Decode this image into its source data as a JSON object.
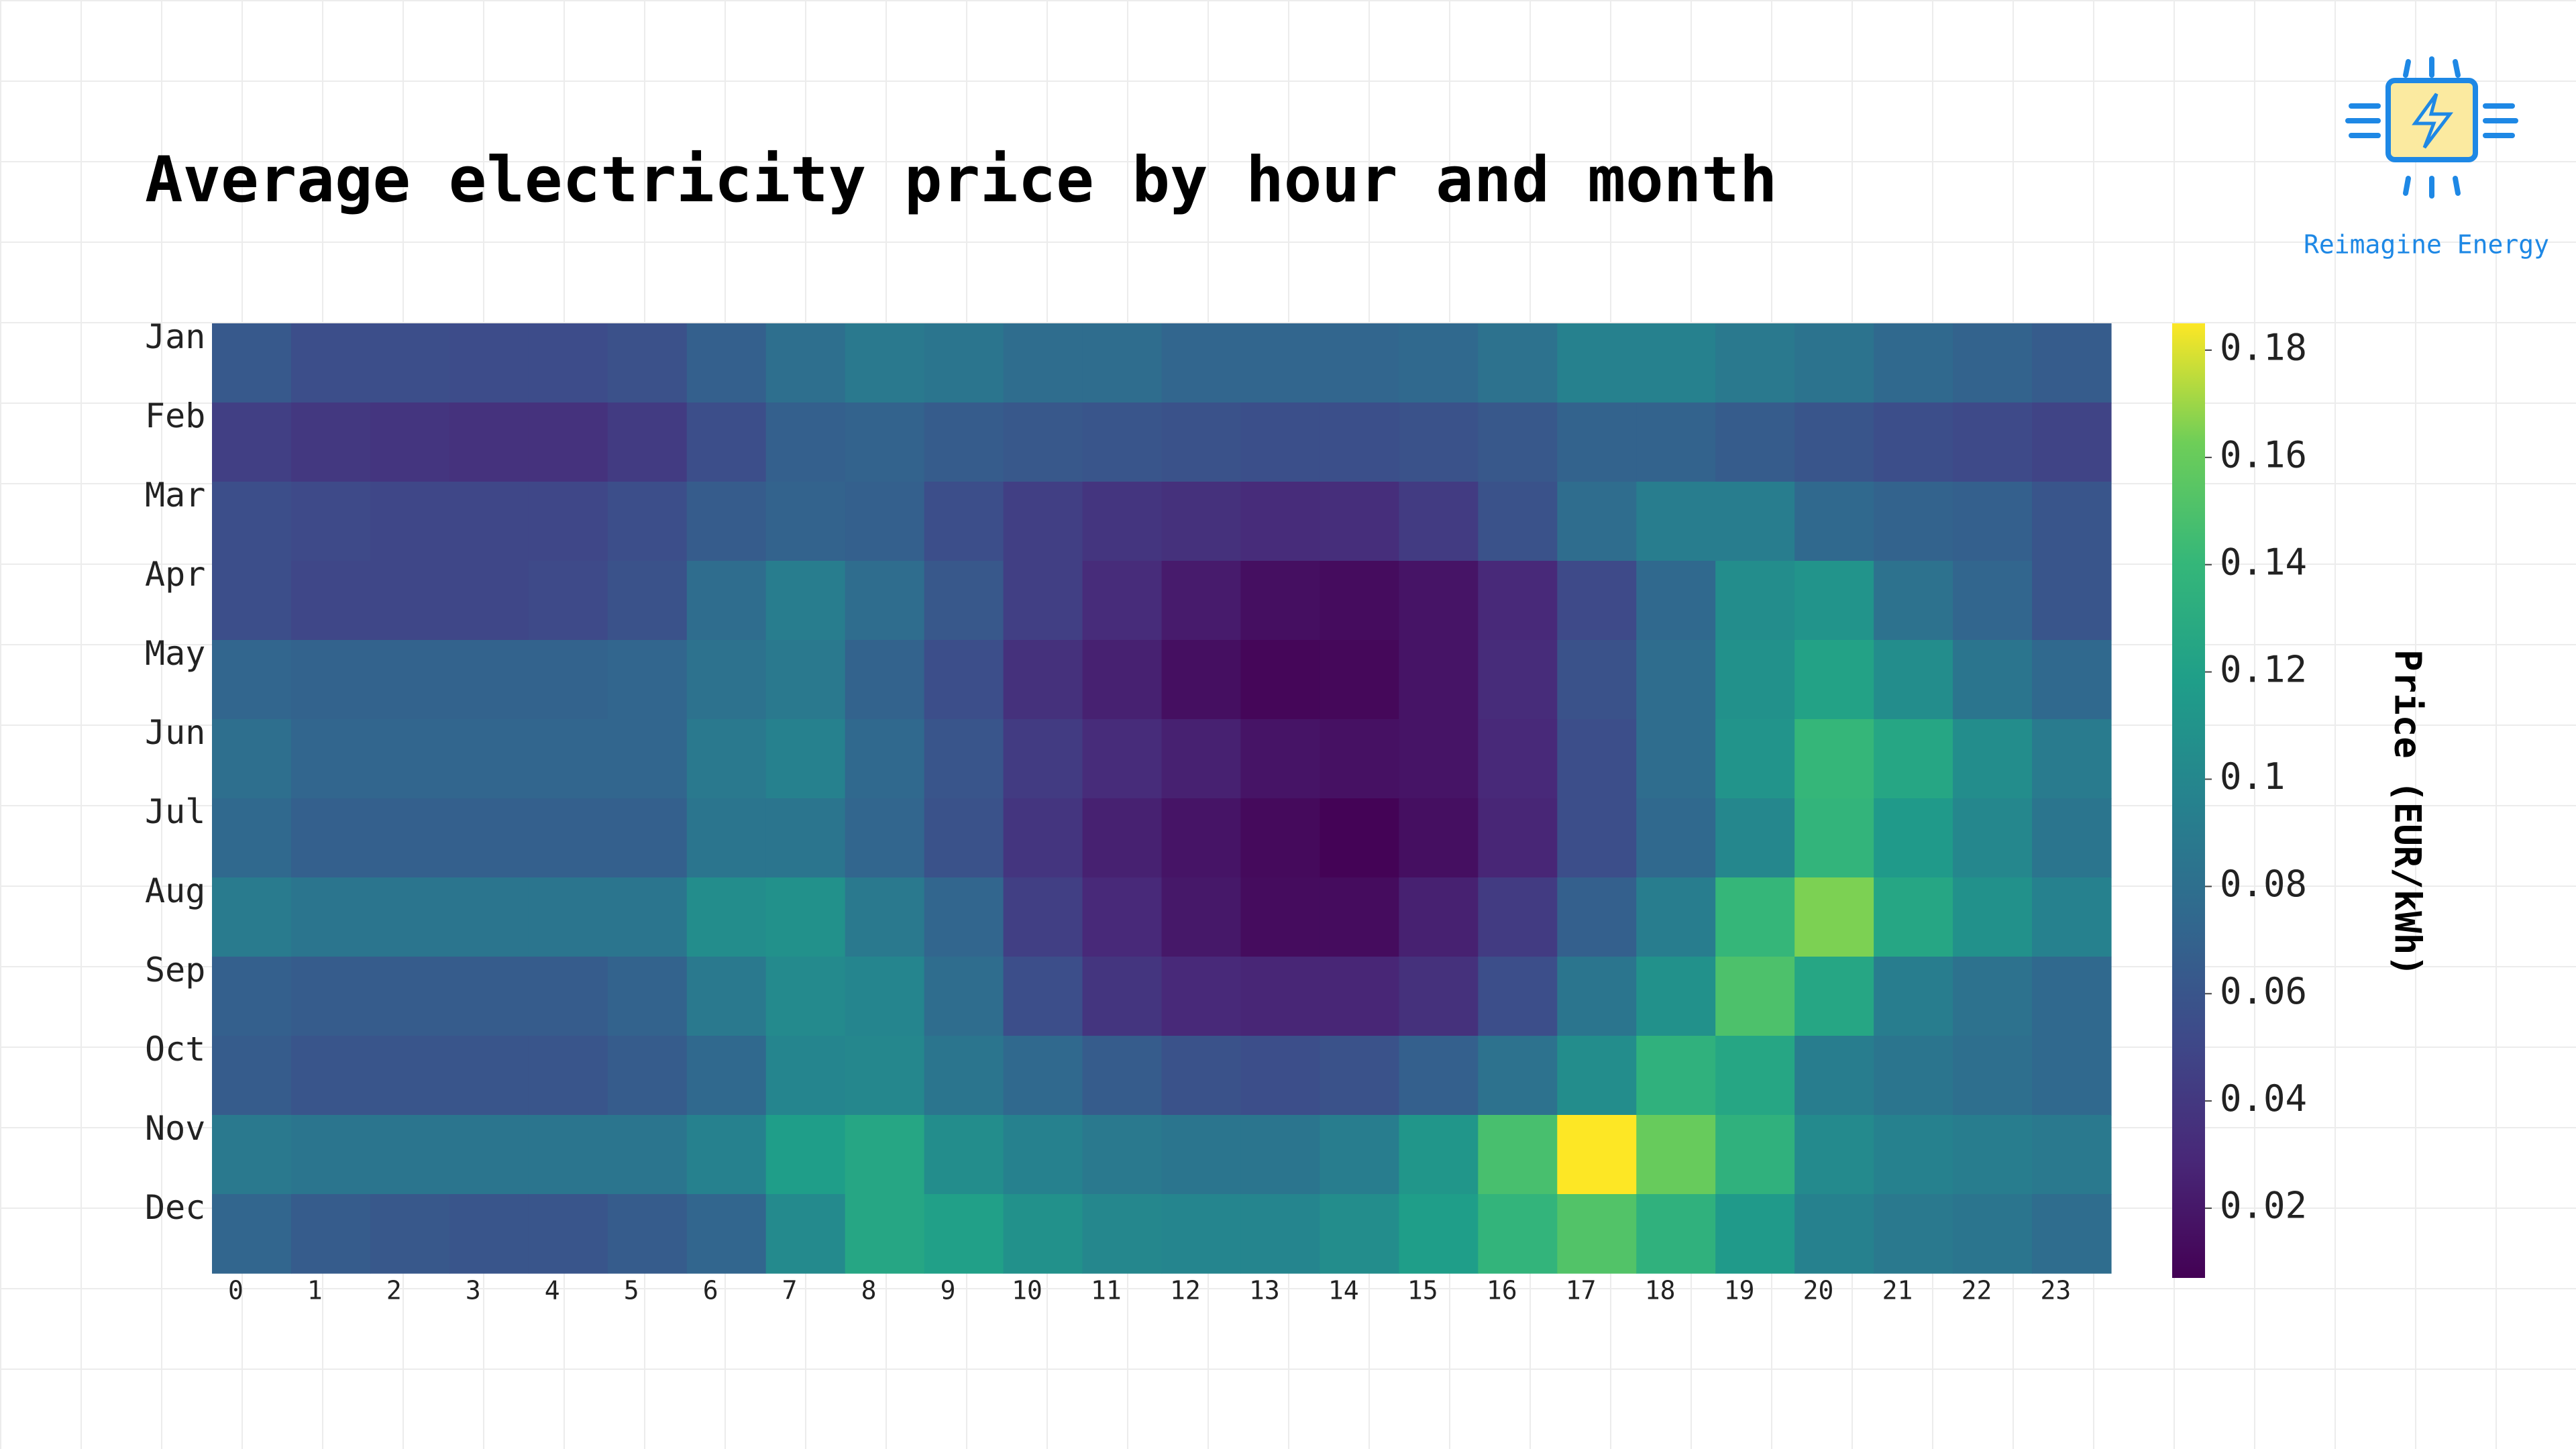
{
  "chart_data": {
    "type": "heatmap",
    "title": "Average electricity price by hour and month",
    "x": [
      0,
      1,
      2,
      3,
      4,
      5,
      6,
      7,
      8,
      9,
      10,
      11,
      12,
      13,
      14,
      15,
      16,
      17,
      18,
      19,
      20,
      21,
      22,
      23
    ],
    "y": [
      "Jan",
      "Feb",
      "Mar",
      "Apr",
      "May",
      "Jun",
      "Jul",
      "Aug",
      "Sep",
      "Oct",
      "Nov",
      "Dec"
    ],
    "z": [
      [
        0.063,
        0.055,
        0.055,
        0.054,
        0.054,
        0.057,
        0.068,
        0.08,
        0.088,
        0.085,
        0.078,
        0.078,
        0.072,
        0.072,
        0.072,
        0.075,
        0.082,
        0.095,
        0.095,
        0.088,
        0.083,
        0.075,
        0.07,
        0.065
      ],
      [
        0.045,
        0.04,
        0.038,
        0.036,
        0.036,
        0.042,
        0.055,
        0.068,
        0.07,
        0.065,
        0.062,
        0.06,
        0.058,
        0.056,
        0.056,
        0.058,
        0.062,
        0.07,
        0.07,
        0.065,
        0.06,
        0.055,
        0.052,
        0.048
      ],
      [
        0.055,
        0.052,
        0.05,
        0.05,
        0.05,
        0.055,
        0.065,
        0.07,
        0.068,
        0.055,
        0.045,
        0.038,
        0.035,
        0.032,
        0.033,
        0.042,
        0.058,
        0.078,
        0.092,
        0.092,
        0.075,
        0.07,
        0.068,
        0.06
      ],
      [
        0.055,
        0.05,
        0.05,
        0.05,
        0.052,
        0.058,
        0.078,
        0.092,
        0.078,
        0.062,
        0.045,
        0.032,
        0.022,
        0.015,
        0.013,
        0.018,
        0.03,
        0.052,
        0.075,
        0.105,
        0.11,
        0.082,
        0.072,
        0.06
      ],
      [
        0.072,
        0.07,
        0.07,
        0.07,
        0.07,
        0.072,
        0.082,
        0.088,
        0.07,
        0.055,
        0.035,
        0.025,
        0.015,
        0.01,
        0.011,
        0.018,
        0.032,
        0.058,
        0.078,
        0.108,
        0.122,
        0.105,
        0.085,
        0.075
      ],
      [
        0.08,
        0.072,
        0.072,
        0.072,
        0.072,
        0.072,
        0.088,
        0.095,
        0.075,
        0.06,
        0.042,
        0.032,
        0.025,
        0.018,
        0.016,
        0.018,
        0.03,
        0.055,
        0.078,
        0.11,
        0.14,
        0.125,
        0.105,
        0.09
      ],
      [
        0.075,
        0.068,
        0.068,
        0.068,
        0.068,
        0.068,
        0.085,
        0.085,
        0.072,
        0.058,
        0.038,
        0.025,
        0.018,
        0.012,
        0.008,
        0.015,
        0.028,
        0.055,
        0.075,
        0.1,
        0.138,
        0.115,
        0.1,
        0.085
      ],
      [
        0.09,
        0.085,
        0.085,
        0.085,
        0.085,
        0.085,
        0.105,
        0.108,
        0.088,
        0.072,
        0.045,
        0.03,
        0.02,
        0.013,
        0.013,
        0.025,
        0.042,
        0.068,
        0.092,
        0.14,
        0.165,
        0.125,
        0.108,
        0.095
      ],
      [
        0.068,
        0.065,
        0.065,
        0.065,
        0.065,
        0.07,
        0.088,
        0.102,
        0.098,
        0.078,
        0.055,
        0.038,
        0.03,
        0.028,
        0.028,
        0.035,
        0.055,
        0.085,
        0.108,
        0.15,
        0.125,
        0.092,
        0.082,
        0.075
      ],
      [
        0.065,
        0.06,
        0.06,
        0.06,
        0.06,
        0.065,
        0.075,
        0.098,
        0.1,
        0.085,
        0.075,
        0.065,
        0.058,
        0.055,
        0.058,
        0.068,
        0.082,
        0.105,
        0.135,
        0.125,
        0.092,
        0.085,
        0.08,
        0.075
      ],
      [
        0.088,
        0.085,
        0.085,
        0.085,
        0.085,
        0.085,
        0.095,
        0.118,
        0.125,
        0.105,
        0.095,
        0.088,
        0.085,
        0.085,
        0.092,
        0.112,
        0.148,
        0.185,
        0.16,
        0.135,
        0.102,
        0.095,
        0.092,
        0.088
      ],
      [
        0.072,
        0.065,
        0.062,
        0.06,
        0.06,
        0.065,
        0.072,
        0.102,
        0.125,
        0.12,
        0.108,
        0.1,
        0.098,
        0.098,
        0.105,
        0.118,
        0.138,
        0.152,
        0.135,
        0.115,
        0.095,
        0.088,
        0.085,
        0.078
      ]
    ],
    "colorscale": "viridis",
    "zlim": [
      0.007,
      0.185
    ],
    "zticks": [
      0.02,
      0.04,
      0.06,
      0.08,
      0.1,
      0.12,
      0.14,
      0.16,
      0.18
    ],
    "colorbar_title": "Price (EUR/kWh)"
  },
  "logo": {
    "text": "Reimagine Energy"
  }
}
